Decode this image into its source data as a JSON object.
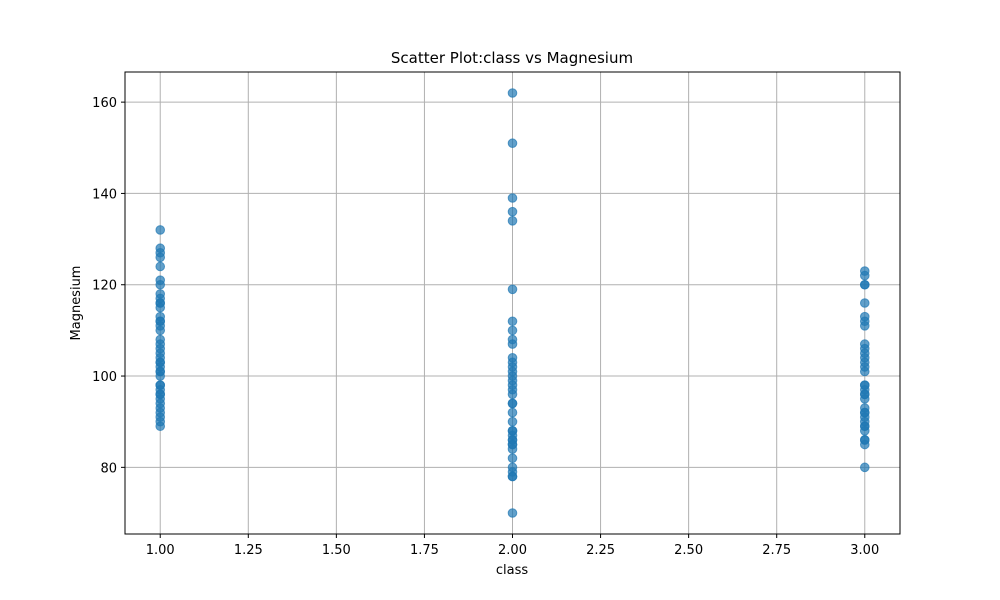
{
  "chart_data": {
    "type": "scatter",
    "title": "Scatter Plot:class vs Magnesium",
    "xlabel": "class",
    "ylabel": "Magnesium",
    "xlim": [
      0.9,
      3.1
    ],
    "ylim": [
      65.4,
      166.6
    ],
    "xticks": [
      "1.00",
      "1.25",
      "1.50",
      "1.75",
      "2.00",
      "2.25",
      "2.50",
      "2.75",
      "3.00"
    ],
    "xtick_values": [
      1.0,
      1.25,
      1.5,
      1.75,
      2.0,
      2.25,
      2.5,
      2.75,
      3.0
    ],
    "yticks": [
      "80",
      "100",
      "120",
      "140",
      "160"
    ],
    "ytick_values": [
      80,
      100,
      120,
      140,
      160
    ],
    "grid": true,
    "color": "#1f77b4",
    "series": [
      {
        "x": [
          1,
          1,
          1,
          1,
          1,
          1,
          1,
          1,
          1,
          1,
          1,
          1,
          1,
          1,
          1,
          1,
          1,
          1,
          1,
          1,
          1,
          1,
          1,
          1,
          1,
          1,
          1,
          1,
          1,
          1,
          1,
          1,
          1,
          1,
          1,
          1,
          1,
          1,
          1,
          1,
          2,
          2,
          2,
          2,
          2,
          2,
          2,
          2,
          2,
          2,
          2,
          2,
          2,
          2,
          2,
          2,
          2,
          2,
          2,
          2,
          2,
          2,
          2,
          2,
          2,
          2,
          2,
          2,
          2,
          2,
          2,
          2,
          2,
          2,
          2,
          2,
          2,
          3,
          3,
          3,
          3,
          3,
          3,
          3,
          3,
          3,
          3,
          3,
          3,
          3,
          3,
          3,
          3,
          3,
          3,
          3,
          3,
          3,
          3,
          3,
          3,
          3,
          3,
          3,
          3,
          3,
          3,
          3,
          3,
          3
        ],
        "y": [
          132,
          128,
          127,
          126,
          124,
          121,
          120,
          118,
          117,
          116,
          115,
          113,
          112,
          111,
          110,
          108,
          107,
          106,
          105,
          104,
          103,
          102,
          101,
          100,
          98,
          97,
          96,
          95,
          94,
          93,
          92,
          91,
          90,
          89,
          98,
          96,
          101,
          112,
          116,
          103,
          162,
          151,
          139,
          136,
          134,
          119,
          112,
          110,
          108,
          107,
          104,
          103,
          102,
          101,
          100,
          99,
          98,
          97,
          96,
          94,
          92,
          90,
          88,
          87,
          86,
          85,
          84,
          82,
          80,
          79,
          78,
          70,
          88,
          86,
          85,
          78,
          94,
          123,
          122,
          120,
          116,
          113,
          112,
          111,
          107,
          106,
          105,
          104,
          103,
          102,
          101,
          98,
          97,
          96,
          95,
          93,
          92,
          91,
          90,
          89,
          88,
          86,
          85,
          80,
          120,
          96,
          98,
          92,
          89,
          86
        ]
      }
    ]
  }
}
